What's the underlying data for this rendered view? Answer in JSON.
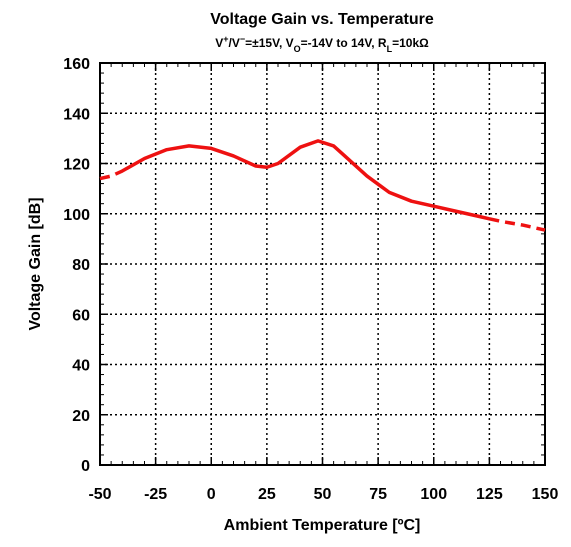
{
  "chart_data": {
    "type": "line",
    "title": "Voltage Gain vs. Temperature",
    "subtitle": [
      {
        "text": "V"
      },
      {
        "text": "+",
        "pos": "sup"
      },
      {
        "text": "/V"
      },
      {
        "text": "−",
        "pos": "sup"
      },
      {
        "text": "=±15V, V"
      },
      {
        "text": "O",
        "pos": "sub"
      },
      {
        "text": "=-14V to 14V, R"
      },
      {
        "text": "L",
        "pos": "sub"
      },
      {
        "text": "=10kΩ"
      }
    ],
    "xlabel": "Ambient Temperature [ºC]",
    "ylabel": "Voltage Gain [dB]",
    "xlim": [
      -50,
      150
    ],
    "ylim": [
      0,
      160
    ],
    "xticks": [
      -50,
      -25,
      0,
      25,
      50,
      75,
      100,
      125,
      150
    ],
    "yticks": [
      0,
      20,
      40,
      60,
      80,
      100,
      120,
      140,
      160
    ],
    "xminor": [
      -45,
      -40,
      -35,
      -30,
      -20,
      -15,
      -10,
      -5,
      5,
      10,
      15,
      20,
      30,
      35,
      40,
      45,
      55,
      60,
      65,
      70,
      80,
      85,
      90,
      95,
      105,
      110,
      115,
      120,
      130,
      135,
      140,
      145
    ],
    "yminor": [
      4,
      8,
      12,
      16,
      24,
      28,
      32,
      36,
      44,
      48,
      52,
      56,
      64,
      68,
      72,
      76,
      84,
      88,
      92,
      96,
      104,
      108,
      112,
      116,
      124,
      128,
      132,
      136,
      144,
      148,
      152,
      156
    ],
    "grid": true,
    "series": [
      {
        "color": "#ee1111",
        "style": "dashed",
        "x": [
          -50,
          -45,
          -43
        ],
        "values": [
          114,
          115,
          115.8
        ]
      },
      {
        "color": "#ee1111",
        "style": "solid",
        "x": [
          -43,
          -40,
          -30,
          -20,
          -10,
          0,
          10,
          20,
          25,
          30,
          40,
          48,
          55,
          60,
          70,
          80,
          90,
          100,
          110,
          120,
          125
        ],
        "values": [
          115.8,
          117,
          122,
          125.5,
          127,
          126,
          123,
          119,
          118.5,
          120,
          126.5,
          129,
          127,
          123,
          115,
          108.5,
          105,
          103,
          101,
          99,
          98
        ]
      },
      {
        "color": "#ee1111",
        "style": "dashed",
        "x": [
          125,
          130,
          140,
          150
        ],
        "values": [
          98,
          97,
          95.5,
          93.5
        ]
      }
    ]
  }
}
